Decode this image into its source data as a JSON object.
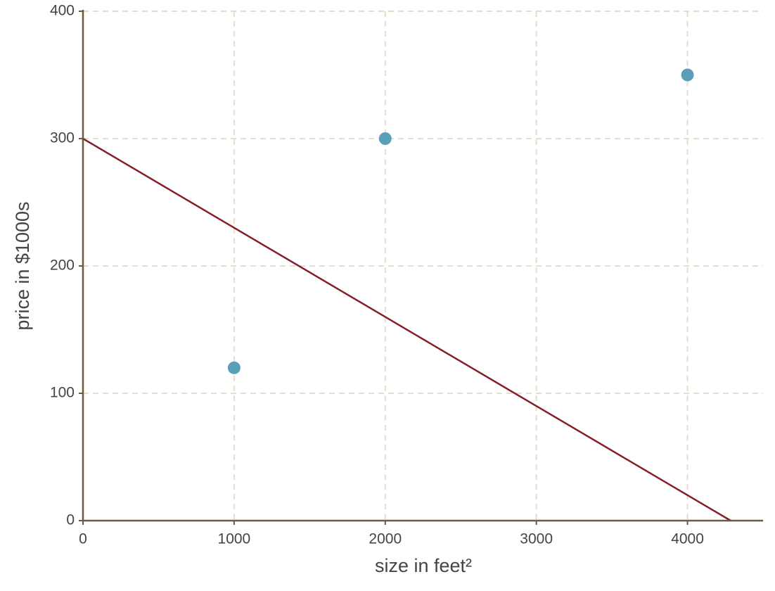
{
  "chart_data": {
    "type": "scatter",
    "xlabel": "size in feet²",
    "ylabel": "price in $1000s",
    "xlim": [
      0,
      4500
    ],
    "ylim": [
      0,
      400
    ],
    "xticks": [
      0,
      1000,
      2000,
      3000,
      4000
    ],
    "yticks": [
      0,
      100,
      200,
      300,
      400
    ],
    "grid": true,
    "axis_color": "#6b5a42",
    "grid_color": "#e8dccf",
    "series": [
      {
        "type": "scatter",
        "color": "#5a9fb7",
        "x": [
          1000,
          2000,
          4000
        ],
        "values": [
          120,
          300,
          350
        ]
      },
      {
        "type": "line",
        "color": "#861f29",
        "x": [
          0,
          4286
        ],
        "values": [
          300,
          0
        ]
      }
    ]
  }
}
